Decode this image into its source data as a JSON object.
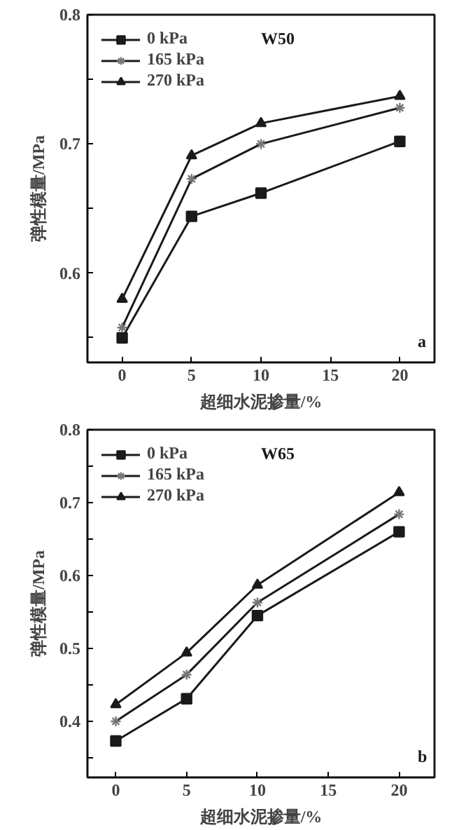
{
  "chart_data": [
    {
      "type": "line",
      "title": "W50",
      "xlabel": "超细水泥掺量/%",
      "ylabel": "弹性模量/MPa",
      "annotations": [
        "a"
      ],
      "x": [
        0,
        5,
        10,
        20
      ],
      "xlim": [
        -2.5,
        22.5
      ],
      "xticks": [
        0,
        5,
        10,
        15,
        20
      ],
      "ylim": [
        0.531,
        0.8
      ],
      "yticks": [
        {
          "value": 0.55,
          "label": null
        },
        0.6,
        {
          "value": 0.65,
          "label": null
        },
        0.7,
        {
          "value": 0.75,
          "label": null
        },
        0.8
      ],
      "legend": "top left",
      "grid": false,
      "series": [
        {
          "name": "0 kPa",
          "color": "#1a1a1a",
          "marker": "square",
          "values": [
            0.55,
            0.644,
            0.662,
            0.702
          ]
        },
        {
          "name": "165 kPa",
          "color": "#1a1a1a",
          "marker": "cross",
          "values": [
            0.558,
            0.673,
            0.7,
            0.728
          ]
        },
        {
          "name": "270 kPa",
          "color": "#1a1a1a",
          "marker": "triangle",
          "values": [
            0.58,
            0.691,
            0.716,
            0.737
          ]
        }
      ]
    },
    {
      "type": "line",
      "title": "W65",
      "xlabel": "超细水泥掺量/%",
      "ylabel": "弹性模量/MPa",
      "annotations": [
        "b"
      ],
      "x": [
        0,
        5,
        10,
        20
      ],
      "xlim": [
        -2,
        22.5
      ],
      "xticks": [
        0,
        5,
        10,
        15,
        20
      ],
      "ylim": [
        0.323,
        0.8
      ],
      "yticks": [
        {
          "value": 0.35,
          "label": null
        },
        0.4,
        {
          "value": 0.45,
          "label": null
        },
        0.5,
        {
          "value": 0.55,
          "label": null
        },
        0.6,
        {
          "value": 0.65,
          "label": null
        },
        0.7,
        {
          "value": 0.75,
          "label": null
        },
        0.8
      ],
      "legend": "top left",
      "grid": false,
      "series": [
        {
          "name": "0 kPa",
          "color": "#1a1a1a",
          "marker": "square",
          "values": [
            0.373,
            0.431,
            0.545,
            0.66
          ]
        },
        {
          "name": "165 kPa",
          "color": "#1a1a1a",
          "marker": "cross",
          "values": [
            0.4,
            0.464,
            0.563,
            0.684
          ]
        },
        {
          "name": "270 kPa",
          "color": "#1a1a1a",
          "marker": "triangle",
          "values": [
            0.423,
            0.494,
            0.587,
            0.714
          ]
        }
      ]
    }
  ]
}
